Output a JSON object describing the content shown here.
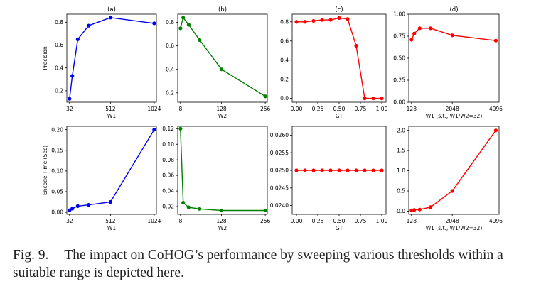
{
  "caption": {
    "label": "Fig. 9.",
    "text": "The impact on CoHOG’s performance by sweeping various thresholds within a suitable range is depicted here."
  },
  "chart_data": [
    {
      "type": "line",
      "title": "(a)",
      "xlabel": "W1",
      "ylabel": "Precision",
      "color": "#0000ee",
      "x": [
        32,
        64,
        128,
        256,
        512,
        1024
      ],
      "y": [
        0.13,
        0.33,
        0.65,
        0.77,
        0.84,
        0.79
      ],
      "xlim": [
        0,
        1050
      ],
      "ylim": [
        0.1,
        0.87
      ],
      "xticks": [
        32,
        512,
        1024
      ],
      "xticklabels": [
        "32",
        "512",
        "1024"
      ],
      "yticks": [
        0.2,
        0.4,
        0.6,
        0.8
      ],
      "yticklabels": [
        "0.2",
        "0.4",
        "0.6",
        "0.8"
      ]
    },
    {
      "type": "line",
      "title": "(b)",
      "xlabel": "W2",
      "ylabel": "",
      "color": "#008000",
      "x": [
        8,
        16,
        32,
        64,
        128,
        256
      ],
      "y": [
        0.75,
        0.84,
        0.78,
        0.65,
        0.4,
        0.17
      ],
      "xlim": [
        0,
        262
      ],
      "ylim": [
        0.12,
        0.87
      ],
      "xticks": [
        8,
        128,
        256
      ],
      "xticklabels": [
        "8",
        "128",
        "256"
      ],
      "yticks": [
        0.2,
        0.4,
        0.6,
        0.8
      ],
      "yticklabels": [
        "0.2",
        "0.4",
        "0.6",
        "0.8"
      ]
    },
    {
      "type": "line",
      "title": "(c)",
      "xlabel": "GT",
      "ylabel": "",
      "color": "#ff0000",
      "x": [
        0.0,
        0.1,
        0.2,
        0.3,
        0.4,
        0.5,
        0.6,
        0.7,
        0.8,
        0.9,
        1.0
      ],
      "y": [
        0.8,
        0.8,
        0.81,
        0.82,
        0.82,
        0.84,
        0.83,
        0.55,
        0.0,
        0.0,
        0.0
      ],
      "xlim": [
        -0.05,
        1.05
      ],
      "ylim": [
        -0.04,
        0.88
      ],
      "xticks": [
        0,
        0.25,
        0.5,
        0.75,
        1.0
      ],
      "xticklabels": [
        "0.00",
        "0.25",
        "0.50",
        "0.75",
        "1.00"
      ],
      "yticks": [
        0,
        0.2,
        0.4,
        0.6,
        0.8
      ],
      "yticklabels": [
        "0.0",
        "0.2",
        "0.4",
        "0.6",
        "0.8"
      ]
    },
    {
      "type": "line",
      "title": "(d)",
      "xlabel": "W1 (s.t., W1/W2=32)",
      "ylabel": "",
      "color": "#ff0000",
      "x": [
        128,
        256,
        512,
        1024,
        2048,
        4096
      ],
      "y": [
        0.71,
        0.78,
        0.84,
        0.84,
        0.76,
        0.7
      ],
      "xlim": [
        0,
        4250
      ],
      "ylim": [
        0,
        1.0
      ],
      "xticks": [
        128,
        2048,
        4096
      ],
      "xticklabels": [
        "128",
        "2048",
        "4096"
      ],
      "yticks": [
        0,
        0.25,
        0.5,
        0.75,
        1.0
      ],
      "yticklabels": [
        "0.00",
        "0.25",
        "0.50",
        "0.75",
        "1.00"
      ]
    },
    {
      "type": "line",
      "title": "",
      "xlabel": "W1",
      "ylabel": "Encode Time (Sec)",
      "color": "#0000ee",
      "x": [
        32,
        64,
        128,
        256,
        512,
        1024
      ],
      "y": [
        0.005,
        0.009,
        0.015,
        0.018,
        0.025,
        0.2
      ],
      "xlim": [
        0,
        1050
      ],
      "ylim": [
        -0.005,
        0.208
      ],
      "xticks": [
        32,
        512,
        1024
      ],
      "xticklabels": [
        "32",
        "512",
        "1024"
      ],
      "yticks": [
        0,
        0.05,
        0.1,
        0.15,
        0.2
      ],
      "yticklabels": [
        "0.00",
        "0.05",
        "0.10",
        "0.15",
        "0.20"
      ]
    },
    {
      "type": "line",
      "title": "",
      "xlabel": "W2",
      "ylabel": "",
      "color": "#008000",
      "x": [
        8,
        16,
        32,
        64,
        128,
        256
      ],
      "y": [
        0.12,
        0.025,
        0.019,
        0.017,
        0.015,
        0.015
      ],
      "xlim": [
        0,
        262
      ],
      "ylim": [
        0.01,
        0.123
      ],
      "xticks": [
        8,
        128,
        256
      ],
      "xticklabels": [
        "8",
        "128",
        "256"
      ],
      "yticks": [
        0.02,
        0.04,
        0.06,
        0.08,
        0.1,
        0.12
      ],
      "yticklabels": [
        "0.02",
        "0.04",
        "0.06",
        "0.08",
        "0.10",
        "0.12"
      ]
    },
    {
      "type": "line",
      "title": "",
      "xlabel": "GT",
      "ylabel": "",
      "color": "#ff0000",
      "x": [
        0.0,
        0.1,
        0.2,
        0.3,
        0.4,
        0.5,
        0.6,
        0.7,
        0.8,
        0.9,
        1.0
      ],
      "y": [
        0.025,
        0.025,
        0.025,
        0.025,
        0.025,
        0.025,
        0.025,
        0.025,
        0.025,
        0.025,
        0.025
      ],
      "xlim": [
        -0.05,
        1.05
      ],
      "ylim": [
        0.02375,
        0.02625
      ],
      "xticks": [
        0,
        0.25,
        0.5,
        0.75,
        1.0
      ],
      "xticklabels": [
        "0.00",
        "0.25",
        "0.50",
        "0.75",
        "1.00"
      ],
      "yticks": [
        0.024,
        0.0245,
        0.025,
        0.0255,
        0.026
      ],
      "yticklabels": [
        "0.0240",
        "0.0245",
        "0.0250",
        "0.0255",
        "0.0260"
      ]
    },
    {
      "type": "line",
      "title": "",
      "xlabel": "W1 (s.t., W1/W2=32)",
      "ylabel": "",
      "color": "#ff0000",
      "x": [
        128,
        256,
        512,
        1024,
        2048,
        4096
      ],
      "y": [
        0.02,
        0.03,
        0.04,
        0.1,
        0.5,
        2.0
      ],
      "xlim": [
        0,
        4250
      ],
      "ylim": [
        -0.08,
        2.1
      ],
      "xticks": [
        128,
        2048,
        4096
      ],
      "xticklabels": [
        "128",
        "2048",
        "4096"
      ],
      "yticks": [
        0,
        0.5,
        1.0,
        1.5,
        2.0
      ],
      "yticklabels": [
        "0.0",
        "0.5",
        "1.0",
        "1.5",
        "2.0"
      ]
    }
  ]
}
